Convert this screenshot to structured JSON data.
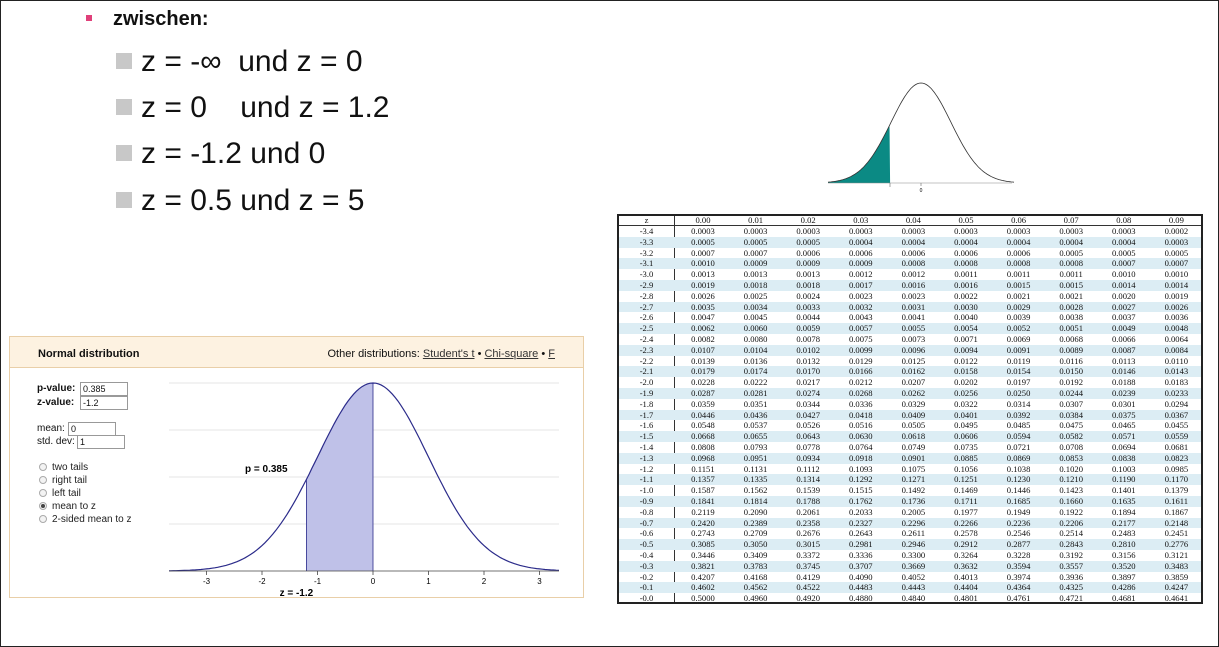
{
  "slide": {
    "heading": "zwischen:",
    "items": [
      "z = -∞  und z = 0",
      "z = 0    und z = 1.2",
      "z = -1.2 und 0",
      "z = 0.5 und z = 5"
    ]
  },
  "curve_image": {
    "tick_labels": [
      "0"
    ],
    "fill_color": "#0b8a84"
  },
  "calculator": {
    "title": "Normal distribution",
    "other_label": "Other distributions: ",
    "links": [
      "Student's t",
      "Chi-square",
      "F"
    ],
    "fields": {
      "p_label": "p-value:",
      "p_value": "0.385",
      "z_label": "z-value:",
      "z_value": "-1.2",
      "mean_label": "mean:",
      "mean_value": "0",
      "sd_label": "std. dev:",
      "sd_value": "1"
    },
    "options": [
      "two tails",
      "right tail",
      "left tail",
      "mean to z",
      "2-sided mean to z"
    ],
    "selected_option": "mean to z",
    "plot": {
      "annotation": "p = 0.385",
      "z_label": "z = -1.2",
      "x_ticks": [
        "-3",
        "-2",
        "-1",
        "0",
        "1",
        "2",
        "3"
      ],
      "shaded_from": -1.2,
      "shaded_to": 0,
      "fill_color": "#bfc1e8",
      "line_color": "#2b2b8a"
    }
  },
  "z_table": {
    "header_z": "z",
    "columns": [
      "0.00",
      "0.01",
      "0.02",
      "0.03",
      "0.04",
      "0.05",
      "0.06",
      "0.07",
      "0.08",
      "0.09"
    ],
    "rows": [
      {
        "z": "-3.4",
        "v": [
          "0.0003",
          "0.0003",
          "0.0003",
          "0.0003",
          "0.0003",
          "0.0003",
          "0.0003",
          "0.0003",
          "0.0003",
          "0.0002"
        ]
      },
      {
        "z": "-3.3",
        "v": [
          "0.0005",
          "0.0005",
          "0.0005",
          "0.0004",
          "0.0004",
          "0.0004",
          "0.0004",
          "0.0004",
          "0.0004",
          "0.0003"
        ]
      },
      {
        "z": "-3.2",
        "v": [
          "0.0007",
          "0.0007",
          "0.0006",
          "0.0006",
          "0.0006",
          "0.0006",
          "0.0006",
          "0.0005",
          "0.0005",
          "0.0005"
        ]
      },
      {
        "z": "-3.1",
        "v": [
          "0.0010",
          "0.0009",
          "0.0009",
          "0.0009",
          "0.0008",
          "0.0008",
          "0.0008",
          "0.0008",
          "0.0007",
          "0.0007"
        ]
      },
      {
        "z": "-3.0",
        "v": [
          "0.0013",
          "0.0013",
          "0.0013",
          "0.0012",
          "0.0012",
          "0.0011",
          "0.0011",
          "0.0011",
          "0.0010",
          "0.0010"
        ]
      },
      {
        "z": "-2.9",
        "v": [
          "0.0019",
          "0.0018",
          "0.0018",
          "0.0017",
          "0.0016",
          "0.0016",
          "0.0015",
          "0.0015",
          "0.0014",
          "0.0014"
        ]
      },
      {
        "z": "-2.8",
        "v": [
          "0.0026",
          "0.0025",
          "0.0024",
          "0.0023",
          "0.0023",
          "0.0022",
          "0.0021",
          "0.0021",
          "0.0020",
          "0.0019"
        ]
      },
      {
        "z": "-2.7",
        "v": [
          "0.0035",
          "0.0034",
          "0.0033",
          "0.0032",
          "0.0031",
          "0.0030",
          "0.0029",
          "0.0028",
          "0.0027",
          "0.0026"
        ]
      },
      {
        "z": "-2.6",
        "v": [
          "0.0047",
          "0.0045",
          "0.0044",
          "0.0043",
          "0.0041",
          "0.0040",
          "0.0039",
          "0.0038",
          "0.0037",
          "0.0036"
        ]
      },
      {
        "z": "-2.5",
        "v": [
          "0.0062",
          "0.0060",
          "0.0059",
          "0.0057",
          "0.0055",
          "0.0054",
          "0.0052",
          "0.0051",
          "0.0049",
          "0.0048"
        ]
      },
      {
        "z": "-2.4",
        "v": [
          "0.0082",
          "0.0080",
          "0.0078",
          "0.0075",
          "0.0073",
          "0.0071",
          "0.0069",
          "0.0068",
          "0.0066",
          "0.0064"
        ]
      },
      {
        "z": "-2.3",
        "v": [
          "0.0107",
          "0.0104",
          "0.0102",
          "0.0099",
          "0.0096",
          "0.0094",
          "0.0091",
          "0.0089",
          "0.0087",
          "0.0084"
        ]
      },
      {
        "z": "-2.2",
        "v": [
          "0.0139",
          "0.0136",
          "0.0132",
          "0.0129",
          "0.0125",
          "0.0122",
          "0.0119",
          "0.0116",
          "0.0113",
          "0.0110"
        ]
      },
      {
        "z": "-2.1",
        "v": [
          "0.0179",
          "0.0174",
          "0.0170",
          "0.0166",
          "0.0162",
          "0.0158",
          "0.0154",
          "0.0150",
          "0.0146",
          "0.0143"
        ]
      },
      {
        "z": "-2.0",
        "v": [
          "0.0228",
          "0.0222",
          "0.0217",
          "0.0212",
          "0.0207",
          "0.0202",
          "0.0197",
          "0.0192",
          "0.0188",
          "0.0183"
        ]
      },
      {
        "z": "-1.9",
        "v": [
          "0.0287",
          "0.0281",
          "0.0274",
          "0.0268",
          "0.0262",
          "0.0256",
          "0.0250",
          "0.0244",
          "0.0239",
          "0.0233"
        ]
      },
      {
        "z": "-1.8",
        "v": [
          "0.0359",
          "0.0351",
          "0.0344",
          "0.0336",
          "0.0329",
          "0.0322",
          "0.0314",
          "0.0307",
          "0.0301",
          "0.0294"
        ]
      },
      {
        "z": "-1.7",
        "v": [
          "0.0446",
          "0.0436",
          "0.0427",
          "0.0418",
          "0.0409",
          "0.0401",
          "0.0392",
          "0.0384",
          "0.0375",
          "0.0367"
        ]
      },
      {
        "z": "-1.6",
        "v": [
          "0.0548",
          "0.0537",
          "0.0526",
          "0.0516",
          "0.0505",
          "0.0495",
          "0.0485",
          "0.0475",
          "0.0465",
          "0.0455"
        ]
      },
      {
        "z": "-1.5",
        "v": [
          "0.0668",
          "0.0655",
          "0.0643",
          "0.0630",
          "0.0618",
          "0.0606",
          "0.0594",
          "0.0582",
          "0.0571",
          "0.0559"
        ]
      },
      {
        "z": "-1.4",
        "v": [
          "0.0808",
          "0.0793",
          "0.0778",
          "0.0764",
          "0.0749",
          "0.0735",
          "0.0721",
          "0.0708",
          "0.0694",
          "0.0681"
        ]
      },
      {
        "z": "-1.3",
        "v": [
          "0.0968",
          "0.0951",
          "0.0934",
          "0.0918",
          "0.0901",
          "0.0885",
          "0.0869",
          "0.0853",
          "0.0838",
          "0.0823"
        ]
      },
      {
        "z": "-1.2",
        "v": [
          "0.1151",
          "0.1131",
          "0.1112",
          "0.1093",
          "0.1075",
          "0.1056",
          "0.1038",
          "0.1020",
          "0.1003",
          "0.0985"
        ]
      },
      {
        "z": "-1.1",
        "v": [
          "0.1357",
          "0.1335",
          "0.1314",
          "0.1292",
          "0.1271",
          "0.1251",
          "0.1230",
          "0.1210",
          "0.1190",
          "0.1170"
        ]
      },
      {
        "z": "-1.0",
        "v": [
          "0.1587",
          "0.1562",
          "0.1539",
          "0.1515",
          "0.1492",
          "0.1469",
          "0.1446",
          "0.1423",
          "0.1401",
          "0.1379"
        ]
      },
      {
        "z": "-0.9",
        "v": [
          "0.1841",
          "0.1814",
          "0.1788",
          "0.1762",
          "0.1736",
          "0.1711",
          "0.1685",
          "0.1660",
          "0.1635",
          "0.1611"
        ]
      },
      {
        "z": "-0.8",
        "v": [
          "0.2119",
          "0.2090",
          "0.2061",
          "0.2033",
          "0.2005",
          "0.1977",
          "0.1949",
          "0.1922",
          "0.1894",
          "0.1867"
        ]
      },
      {
        "z": "-0.7",
        "v": [
          "0.2420",
          "0.2389",
          "0.2358",
          "0.2327",
          "0.2296",
          "0.2266",
          "0.2236",
          "0.2206",
          "0.2177",
          "0.2148"
        ]
      },
      {
        "z": "-0.6",
        "v": [
          "0.2743",
          "0.2709",
          "0.2676",
          "0.2643",
          "0.2611",
          "0.2578",
          "0.2546",
          "0.2514",
          "0.2483",
          "0.2451"
        ]
      },
      {
        "z": "-0.5",
        "v": [
          "0.3085",
          "0.3050",
          "0.3015",
          "0.2981",
          "0.2946",
          "0.2912",
          "0.2877",
          "0.2843",
          "0.2810",
          "0.2776"
        ]
      },
      {
        "z": "-0.4",
        "v": [
          "0.3446",
          "0.3409",
          "0.3372",
          "0.3336",
          "0.3300",
          "0.3264",
          "0.3228",
          "0.3192",
          "0.3156",
          "0.3121"
        ]
      },
      {
        "z": "-0.3",
        "v": [
          "0.3821",
          "0.3783",
          "0.3745",
          "0.3707",
          "0.3669",
          "0.3632",
          "0.3594",
          "0.3557",
          "0.3520",
          "0.3483"
        ]
      },
      {
        "z": "-0.2",
        "v": [
          "0.4207",
          "0.4168",
          "0.4129",
          "0.4090",
          "0.4052",
          "0.4013",
          "0.3974",
          "0.3936",
          "0.3897",
          "0.3859"
        ]
      },
      {
        "z": "-0.1",
        "v": [
          "0.4602",
          "0.4562",
          "0.4522",
          "0.4483",
          "0.4443",
          "0.4404",
          "0.4364",
          "0.4325",
          "0.4286",
          "0.4247"
        ]
      },
      {
        "z": "-0.0",
        "v": [
          "0.5000",
          "0.4960",
          "0.4920",
          "0.4880",
          "0.4840",
          "0.4801",
          "0.4761",
          "0.4721",
          "0.4681",
          "0.4641"
        ]
      }
    ],
    "alt_color": "#dcedf4"
  }
}
